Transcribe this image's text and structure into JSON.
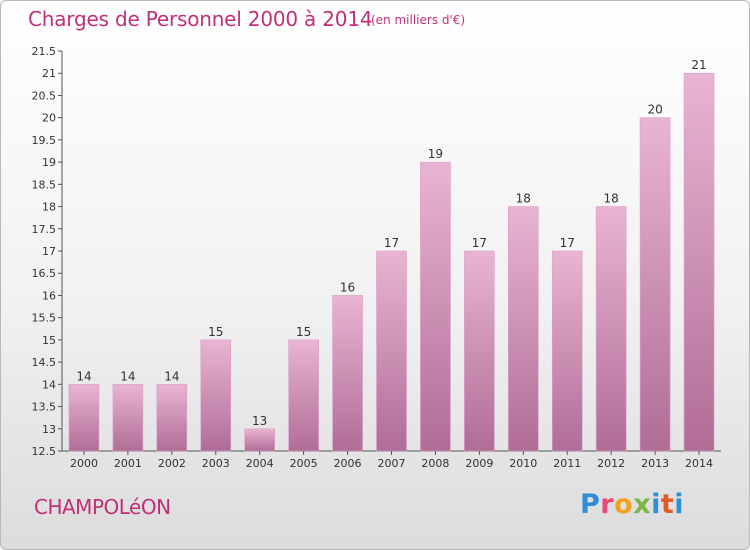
{
  "header": {
    "title": "Charges de Personnel 2000 à 2014",
    "subtitle": "(en milliers d'€)"
  },
  "footer": {
    "commune": "CHAMPOLéON",
    "logo_letters": [
      "P",
      "r",
      "o",
      "x",
      "i",
      "t",
      "i"
    ]
  },
  "colors": {
    "title": "#c0307a",
    "bar_top": "#e9b4d4",
    "bar_bottom": "#b06d96",
    "axis": "#555555"
  },
  "chart_data": {
    "type": "bar",
    "title": "Charges de Personnel 2000 à 2014",
    "subtitle": "(en milliers d'€)",
    "categories": [
      "2000",
      "2001",
      "2002",
      "2003",
      "2004",
      "2005",
      "2006",
      "2007",
      "2008",
      "2009",
      "2010",
      "2011",
      "2012",
      "2013",
      "2014"
    ],
    "values": [
      14,
      14,
      14,
      15,
      13,
      15,
      16,
      17,
      19,
      17,
      18,
      17,
      18,
      20,
      21
    ],
    "labels": [
      "14",
      "14",
      "14",
      "15",
      "13",
      "15",
      "16",
      "17",
      "19",
      "17",
      "18",
      "17",
      "18",
      "20",
      "21"
    ],
    "ylim": [
      12.5,
      21.5
    ],
    "yticks": [
      "12.5",
      "13",
      "13.5",
      "14",
      "14.5",
      "15",
      "15.5",
      "16",
      "16.5",
      "17",
      "17.5",
      "18",
      "18.5",
      "19",
      "19.5",
      "20",
      "20.5",
      "21",
      "21.5"
    ],
    "xlabel": "",
    "ylabel": "",
    "grid": false,
    "legend": "none"
  }
}
